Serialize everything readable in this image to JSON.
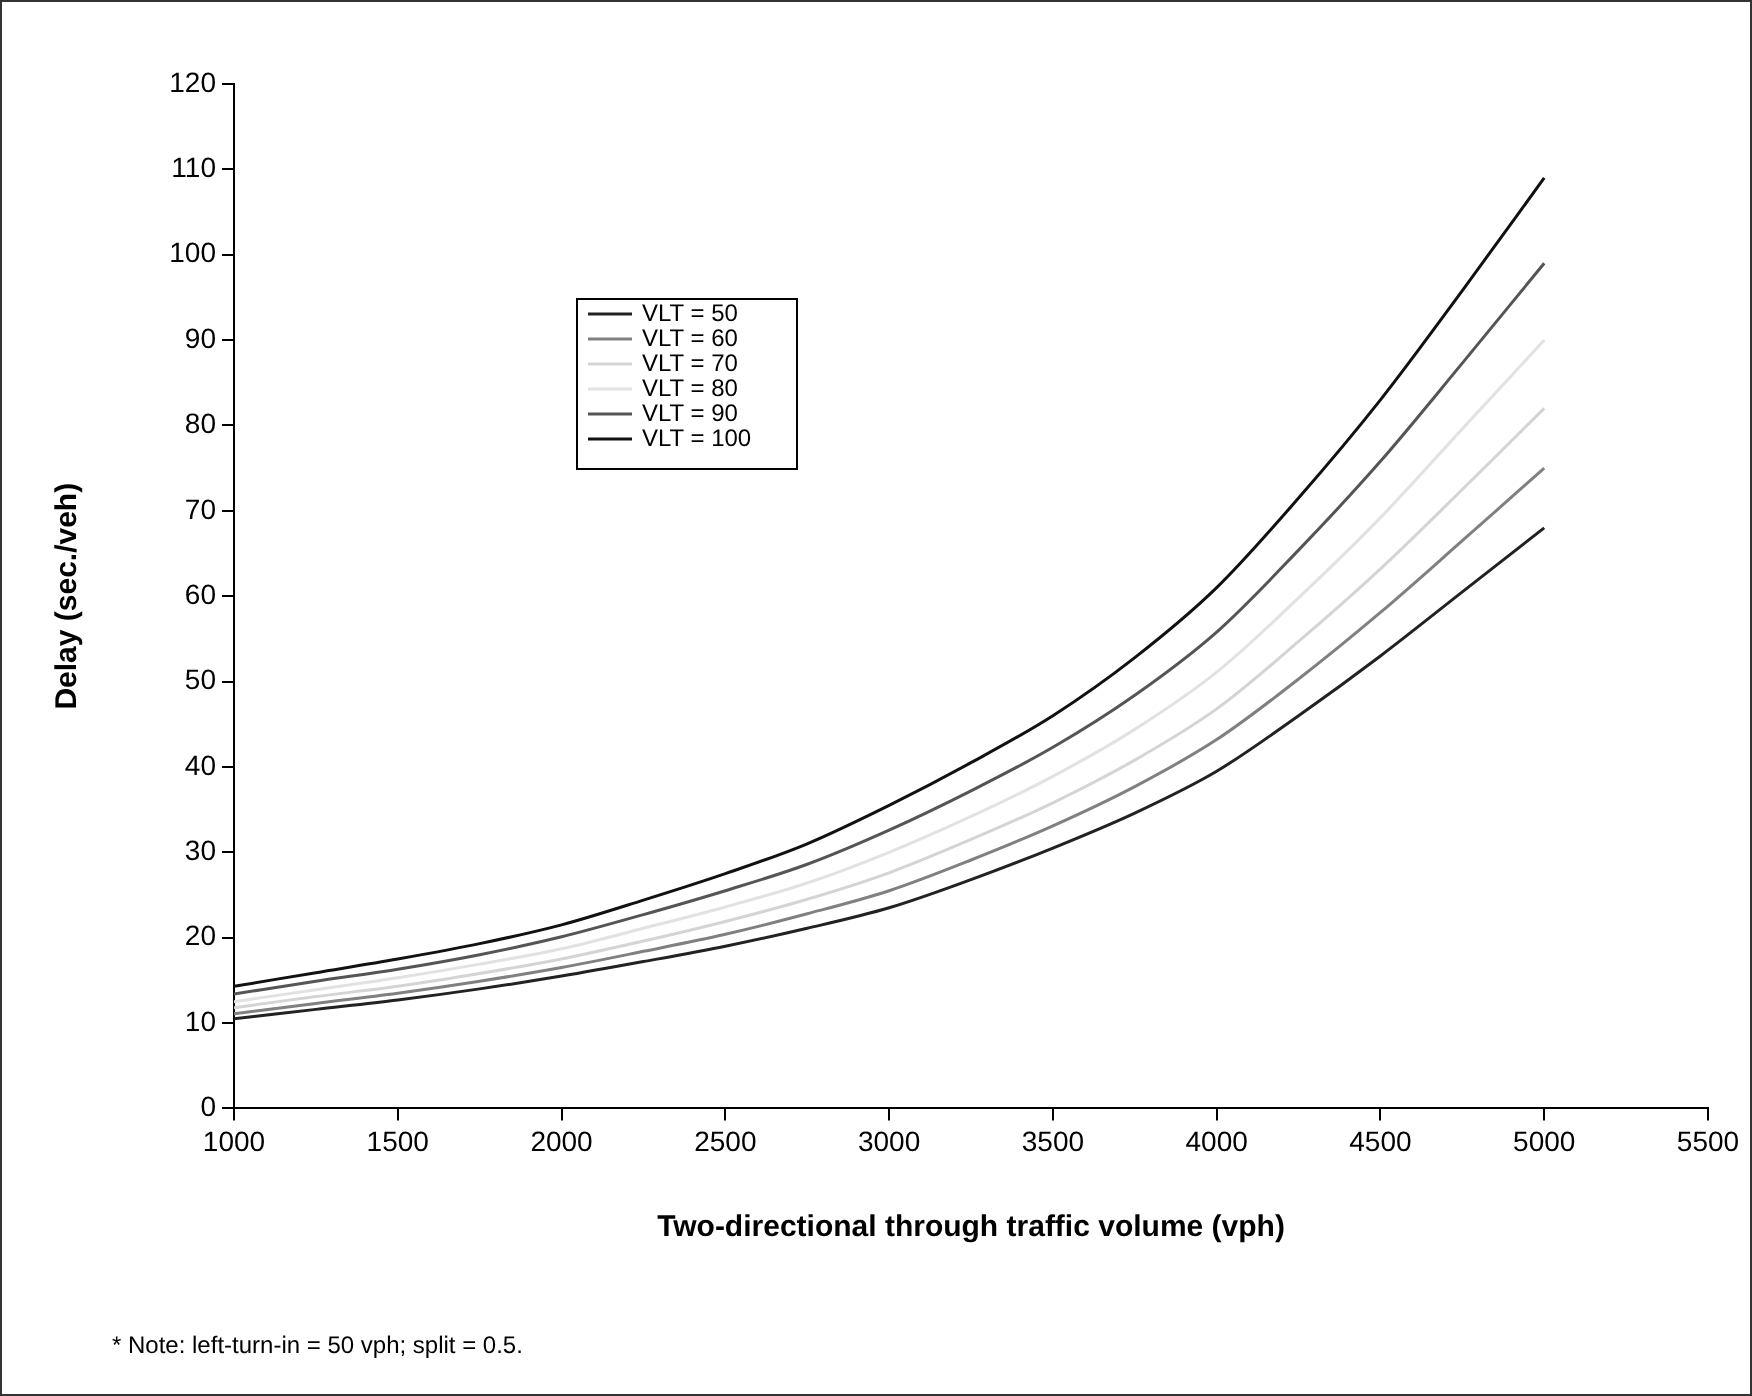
{
  "chart_data": {
    "type": "line",
    "xlabel": "Two-directional through traffic volume (vph)",
    "ylabel": "Delay (sec./veh)",
    "x": [
      1000,
      1250,
      1500,
      1750,
      2000,
      2250,
      2500,
      2750,
      3000,
      3250,
      3500,
      3750,
      4000,
      4250,
      4500,
      4750,
      5000
    ],
    "xlim": [
      1000,
      5500
    ],
    "xticks": [
      1000,
      1500,
      2000,
      2500,
      3000,
      3500,
      4000,
      4500,
      5000,
      5500
    ],
    "ylim": [
      0,
      120
    ],
    "yticks": [
      0,
      10,
      20,
      30,
      40,
      50,
      60,
      70,
      80,
      90,
      100,
      110,
      120
    ],
    "grid": false,
    "legend": "top left",
    "marker": "none",
    "line_style": "solid",
    "annotations": [
      "* Note: left-turn-in = 50 vph; split = 0.5."
    ],
    "series": [
      {
        "name": "VLT = 50",
        "color": "#222222",
        "values": [
          10.5,
          11.6,
          12.7,
          14,
          15.5,
          17.2,
          19,
          21.1,
          23.5,
          26.8,
          30.5,
          34.6,
          39.5,
          46,
          53,
          60.5,
          68
        ]
      },
      {
        "name": "VLT = 60",
        "color": "#808080",
        "values": [
          11.1,
          12.3,
          13.5,
          14.9,
          16.5,
          18.4,
          20.4,
          22.8,
          25.5,
          29.1,
          33.1,
          37.7,
          43.2,
          50.3,
          58.1,
          66.5,
          75
        ]
      },
      {
        "name": "VLT = 70",
        "color": "#d4d4d4",
        "values": [
          11.8,
          13.1,
          14.3,
          15.8,
          17.5,
          19.6,
          21.9,
          24.5,
          27.6,
          31.5,
          35.8,
          40.8,
          46.8,
          54.7,
          63.2,
          72.5,
          82
        ]
      },
      {
        "name": "VLT = 80",
        "color": "#e2e2e2",
        "values": [
          12.5,
          13.9,
          15.3,
          16.9,
          18.7,
          21.1,
          23.6,
          26.4,
          30,
          34.2,
          38.9,
          44.4,
          51.1,
          59.8,
          69.2,
          79.6,
          90
        ]
      },
      {
        "name": "VLT = 90",
        "color": "#555555",
        "values": [
          13.4,
          14.9,
          16.3,
          18,
          20.1,
          22.7,
          25.5,
          28.6,
          32.6,
          37.2,
          42.3,
          48.4,
          55.8,
          65.4,
          75.8,
          87.3,
          99
        ]
      },
      {
        "name": "VLT = 100",
        "color": "#111111",
        "values": [
          14.3,
          15.9,
          17.5,
          19.3,
          21.5,
          24.4,
          27.5,
          31,
          35.5,
          40.5,
          46,
          52.8,
          61,
          71.5,
          83,
          95.8,
          109
        ]
      }
    ]
  }
}
